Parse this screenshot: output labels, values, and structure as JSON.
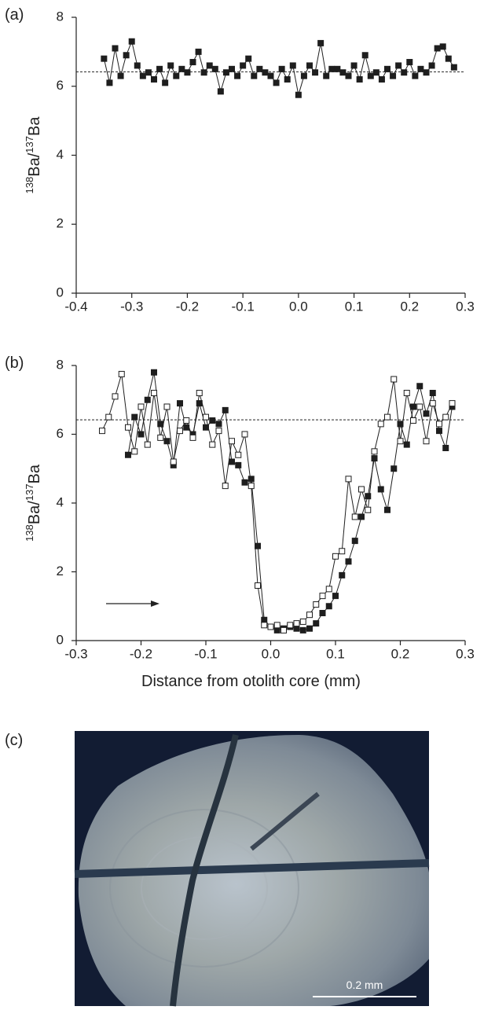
{
  "chart_data": [
    {
      "type": "line",
      "panel_label": "(a)",
      "y_label": [
        "138",
        "Ba/",
        "137",
        "Ba"
      ],
      "xlim": [
        -0.4,
        0.3
      ],
      "ylim": [
        0,
        8
      ],
      "xticks": [
        -0.4,
        -0.3,
        -0.2,
        -0.1,
        {
          "value": 0,
          "label": "0.0"
        },
        0.1,
        0.2,
        0.3
      ],
      "yticks": [
        0,
        2,
        4,
        6,
        8
      ],
      "ref_line": 6.42,
      "x": [
        -0.35,
        -0.34,
        -0.33,
        -0.32,
        -0.31,
        -0.3,
        -0.29,
        -0.28,
        -0.27,
        -0.26,
        -0.25,
        -0.24,
        -0.23,
        -0.22,
        -0.21,
        -0.2,
        -0.19,
        -0.18,
        -0.17,
        -0.16,
        -0.15,
        -0.14,
        -0.13,
        -0.12,
        -0.11,
        -0.1,
        -0.09,
        -0.08,
        -0.07,
        -0.06,
        -0.05,
        -0.04,
        -0.03,
        -0.02,
        -0.01,
        0,
        0.01,
        0.02,
        0.03,
        0.04,
        0.05,
        0.06,
        0.07,
        0.08,
        0.09,
        0.1,
        0.11,
        0.12,
        0.13,
        0.14,
        0.15,
        0.16,
        0.17,
        0.18,
        0.19,
        0.2,
        0.21,
        0.22,
        0.23,
        0.24,
        0.25,
        0.26,
        0.27,
        0.28
      ],
      "series": [
        {
          "color": "#1e1e1e",
          "marker_fill": "#1e1e1e",
          "values": [
            6.8,
            6.1,
            7.1,
            6.3,
            6.9,
            7.3,
            6.6,
            6.3,
            6.4,
            6.2,
            6.5,
            6.1,
            6.6,
            6.3,
            6.5,
            6.4,
            6.7,
            7.0,
            6.4,
            6.6,
            6.5,
            5.85,
            6.4,
            6.5,
            6.3,
            6.6,
            6.8,
            6.3,
            6.5,
            6.4,
            6.3,
            6.1,
            6.5,
            6.2,
            6.6,
            5.75,
            6.3,
            6.6,
            6.4,
            7.25,
            6.3,
            6.5,
            6.5,
            6.4,
            6.3,
            6.6,
            6.2,
            6.9,
            6.3,
            6.4,
            6.2,
            6.5,
            6.3,
            6.6,
            6.4,
            6.7,
            6.3,
            6.5,
            6.4,
            6.6,
            7.1,
            7.15,
            6.8,
            6.55
          ]
        }
      ]
    },
    {
      "type": "line",
      "panel_label": "(b)",
      "y_label": [
        "138",
        "Ba/",
        "137",
        "Ba"
      ],
      "x_label": "Distance from otolith core (mm)",
      "xlim": [
        -0.3,
        0.3
      ],
      "ylim": [
        0,
        8
      ],
      "xticks": [
        -0.3,
        -0.2,
        -0.1,
        {
          "value": 0,
          "label": "0.0"
        },
        0.1,
        0.2,
        0.3
      ],
      "yticks": [
        0,
        2,
        4,
        6,
        8
      ],
      "ref_line": 6.42,
      "x": [
        -0.26,
        -0.25,
        -0.24,
        -0.23,
        -0.22,
        -0.21,
        -0.2,
        -0.19,
        -0.18,
        -0.17,
        -0.16,
        -0.15,
        -0.14,
        -0.13,
        -0.12,
        -0.11,
        -0.1,
        -0.09,
        -0.08,
        -0.07,
        -0.06,
        -0.05,
        -0.04,
        -0.03,
        -0.02,
        -0.01,
        0,
        0.01,
        0.02,
        0.03,
        0.04,
        0.05,
        0.06,
        0.07,
        0.08,
        0.09,
        0.1,
        0.11,
        0.12,
        0.13,
        0.14,
        0.15,
        0.16,
        0.17,
        0.18,
        0.19,
        0.2,
        0.21,
        0.22,
        0.23,
        0.24,
        0.25,
        0.26,
        0.27,
        0.28
      ],
      "series": [
        {
          "color": "#1e1e1e",
          "marker_fill": "#1e1e1e",
          "values": [
            null,
            null,
            null,
            null,
            5.4,
            6.5,
            6.0,
            7.0,
            7.8,
            6.3,
            5.8,
            5.1,
            6.9,
            6.2,
            6.0,
            6.9,
            6.2,
            6.4,
            6.3,
            6.7,
            5.2,
            5.1,
            4.6,
            4.7,
            2.75,
            0.6,
            0.4,
            0.3,
            0.35,
            0.4,
            0.35,
            0.3,
            0.35,
            0.5,
            0.8,
            1.0,
            1.3,
            1.9,
            2.3,
            2.9,
            3.6,
            4.2,
            5.3,
            4.4,
            3.8,
            5.0,
            6.3,
            5.7,
            6.8,
            7.4,
            6.6,
            7.2,
            6.1,
            5.6,
            6.8
          ]
        },
        {
          "color": "#1e1e1e",
          "marker_fill": "#ffffff",
          "values": [
            6.1,
            6.5,
            7.1,
            7.75,
            6.2,
            5.5,
            6.8,
            5.7,
            7.2,
            5.9,
            6.8,
            5.2,
            6.1,
            6.4,
            5.9,
            7.2,
            6.5,
            5.7,
            6.1,
            4.5,
            5.8,
            5.4,
            6.0,
            4.5,
            1.6,
            0.45,
            0.4,
            0.45,
            0.3,
            0.45,
            0.5,
            0.55,
            0.75,
            1.05,
            1.3,
            1.5,
            2.45,
            2.6,
            4.7,
            3.6,
            4.4,
            3.8,
            5.5,
            6.3,
            6.5,
            7.6,
            5.8,
            7.2,
            6.4,
            6.8,
            5.8,
            6.9,
            6.3,
            6.5,
            6.9
          ]
        }
      ]
    }
  ],
  "image_panel": {
    "panel_label": "(c)",
    "scale_label": "0.2 mm"
  }
}
